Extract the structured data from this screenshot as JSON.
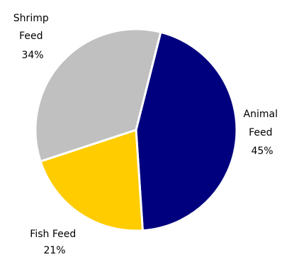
{
  "chart_data": {
    "type": "pie",
    "slices": [
      {
        "label": "Animal Feed",
        "label_lines": [
          "Animal",
          "Feed",
          "45%"
        ],
        "value": 45,
        "color": "#00007E"
      },
      {
        "label": "Fish Feed",
        "label_lines": [
          "Fish Feed",
          "21%"
        ],
        "value": 21,
        "color": "#FFCC00"
      },
      {
        "label": "Shrimp Feed",
        "label_lines": [
          "Shrimp",
          "Feed",
          "34%"
        ],
        "value": 34,
        "color": "#C0C0C0"
      }
    ],
    "legend": "none"
  }
}
